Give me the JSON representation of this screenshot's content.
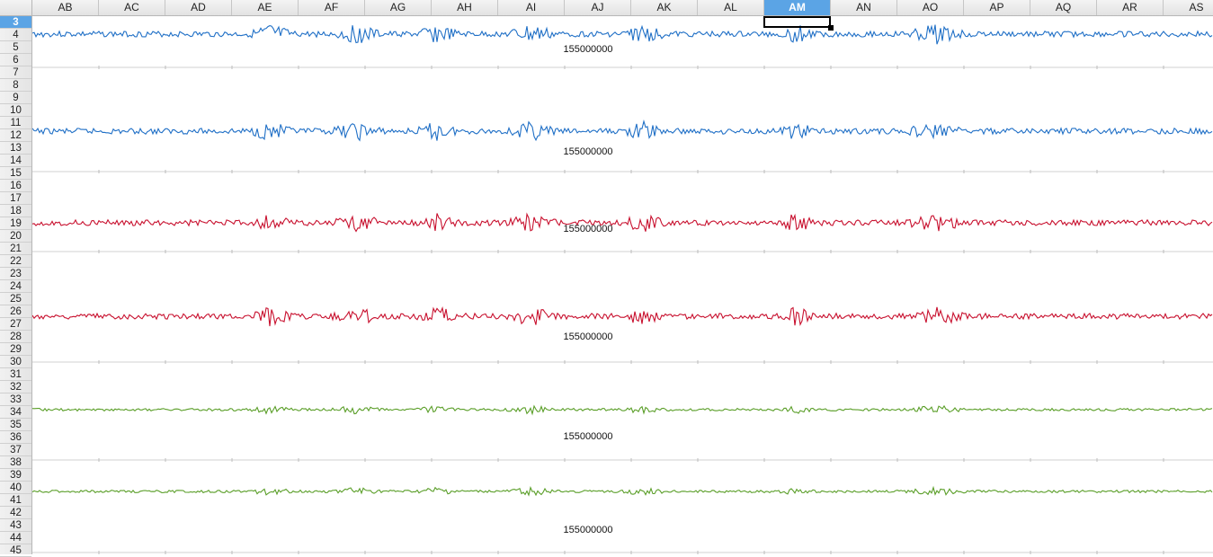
{
  "spreadsheet": {
    "columns": [
      "AB",
      "AC",
      "AD",
      "AE",
      "AF",
      "AG",
      "AH",
      "AI",
      "AJ",
      "AK",
      "AL",
      "AM",
      "AN",
      "AO",
      "AP",
      "AQ",
      "AR",
      "AS"
    ],
    "selected_column": "AM",
    "rows": [
      "3",
      "4",
      "5",
      "6",
      "7",
      "8",
      "9",
      "10",
      "11",
      "12",
      "13",
      "14",
      "15",
      "16",
      "17",
      "18",
      "19",
      "20",
      "21",
      "22",
      "23",
      "24",
      "25",
      "26",
      "27",
      "28",
      "29",
      "30",
      "31",
      "32",
      "33",
      "34",
      "35",
      "36",
      "37",
      "38",
      "39",
      "40",
      "41",
      "42",
      "43",
      "44",
      "45"
    ],
    "selected_row": "3"
  },
  "charts": [
    {
      "id": "chart-1",
      "color": "#1f6fc6",
      "amplitude": "large",
      "axis_label": "155000000"
    },
    {
      "id": "chart-2",
      "color": "#1f6fc6",
      "amplitude": "large",
      "axis_label": "155000000"
    },
    {
      "id": "chart-3",
      "color": "#c8102e",
      "amplitude": "large",
      "axis_label": "155000000"
    },
    {
      "id": "chart-4",
      "color": "#c8102e",
      "amplitude": "large",
      "axis_label": "155000000"
    },
    {
      "id": "chart-5",
      "color": "#5a9e28",
      "amplitude": "small",
      "axis_label": "155000000"
    },
    {
      "id": "chart-6",
      "color": "#5a9e28",
      "amplitude": "small",
      "axis_label": "155000000"
    }
  ]
}
